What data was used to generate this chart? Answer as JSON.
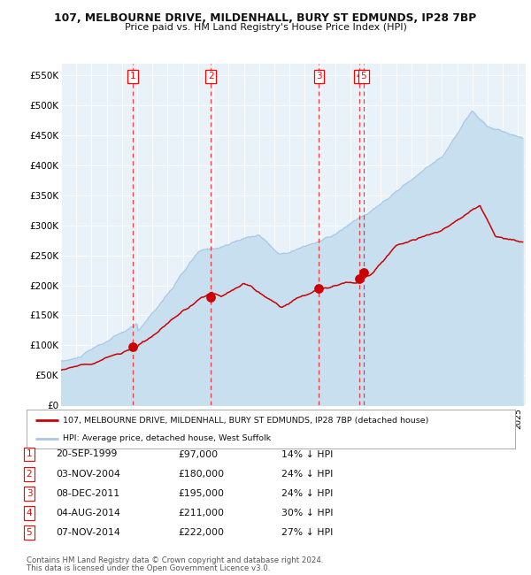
{
  "title1": "107, MELBOURNE DRIVE, MILDENHALL, BURY ST EDMUNDS, IP28 7BP",
  "title2": "Price paid vs. HM Land Registry's House Price Index (HPI)",
  "ylim": [
    0,
    570000
  ],
  "yticks": [
    0,
    50000,
    100000,
    150000,
    200000,
    250000,
    300000,
    350000,
    400000,
    450000,
    500000,
    550000
  ],
  "ytick_labels": [
    "£0",
    "£50K",
    "£100K",
    "£150K",
    "£200K",
    "£250K",
    "£300K",
    "£350K",
    "£400K",
    "£450K",
    "£500K",
    "£550K"
  ],
  "hpi_color": "#a8c8e8",
  "hpi_fill_color": "#c8dff0",
  "sale_color": "#cc0000",
  "plot_bg": "#e8f2f8",
  "sale_points": [
    {
      "label": "1",
      "date": "20-SEP-1999",
      "year": 1999.72,
      "price": 97000,
      "hpi_pct": "14%"
    },
    {
      "label": "2",
      "date": "03-NOV-2004",
      "year": 2004.84,
      "price": 180000,
      "hpi_pct": "24%"
    },
    {
      "label": "3",
      "date": "08-DEC-2011",
      "year": 2011.93,
      "price": 195000,
      "hpi_pct": "24%"
    },
    {
      "label": "4",
      "date": "04-AUG-2014",
      "year": 2014.59,
      "price": 211000,
      "hpi_pct": "30%"
    },
    {
      "label": "5",
      "date": "07-NOV-2014",
      "year": 2014.85,
      "price": 222000,
      "hpi_pct": "27%"
    }
  ],
  "legend_sale_label": "107, MELBOURNE DRIVE, MILDENHALL, BURY ST EDMUNDS, IP28 7BP (detached house)",
  "legend_hpi_label": "HPI: Average price, detached house, West Suffolk",
  "footer1": "Contains HM Land Registry data © Crown copyright and database right 2024.",
  "footer2": "This data is licensed under the Open Government Licence v3.0."
}
